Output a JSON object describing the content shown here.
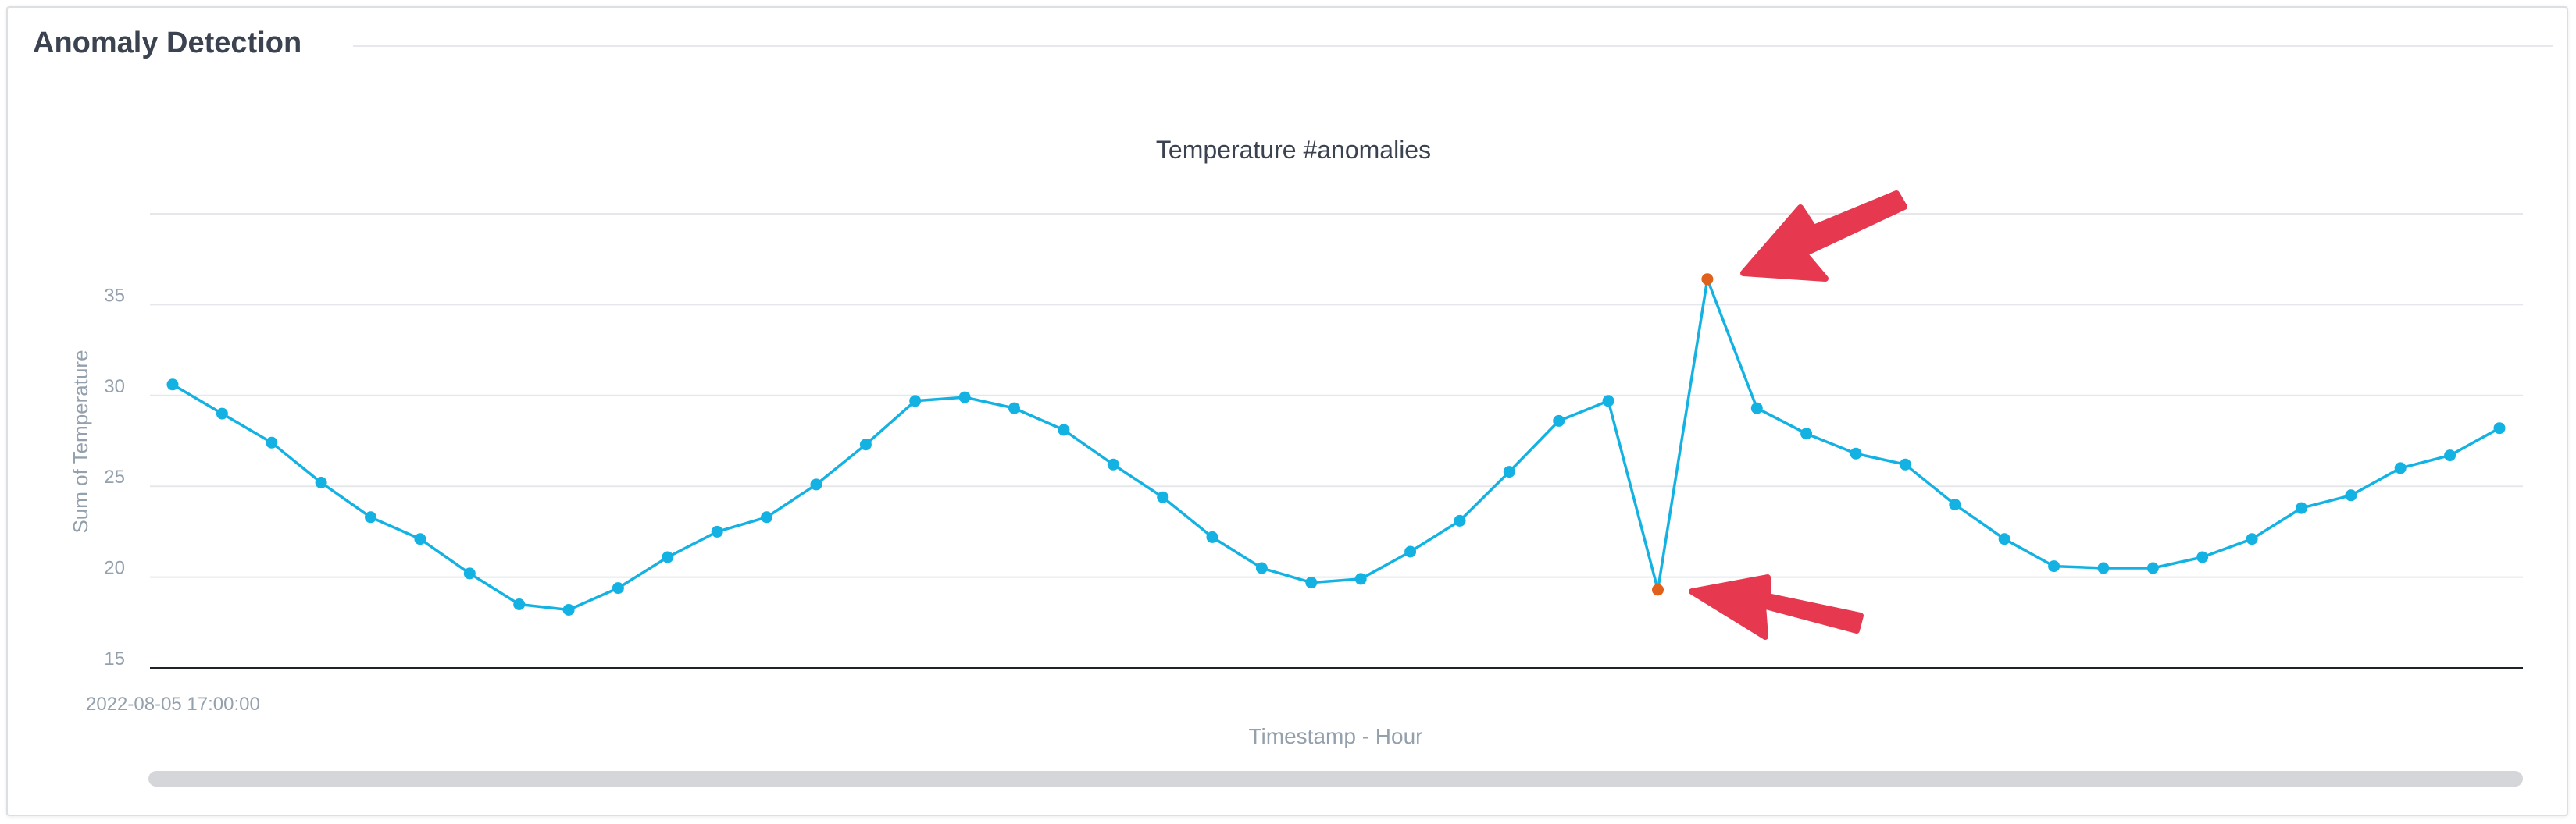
{
  "widget": {
    "title": "Anomaly Detection"
  },
  "colors": {
    "line": "#14b2e2",
    "anomaly": "#e0611b",
    "arrow": "#e6394f",
    "grid": "#e5e7ea",
    "axis": "#1f2328",
    "label": "#94a1ad",
    "title": "#3b4350"
  },
  "chart_data": {
    "type": "line",
    "title": "Temperature #anomalies",
    "xlabel": "Timestamp - Hour",
    "ylabel": "Sum of Temperature",
    "x_first_label": "2022-08-05 17:00:00",
    "ylim": [
      15,
      40
    ],
    "yticks": [
      15,
      20,
      25,
      30,
      35
    ],
    "grid": true,
    "legend": "none",
    "series": [
      {
        "values": [
          30.6,
          29.0,
          27.4,
          25.2,
          23.3,
          22.1,
          20.2,
          18.5,
          18.2,
          19.4,
          21.1,
          22.5,
          23.3,
          25.1,
          27.3,
          29.7,
          29.9,
          29.3,
          28.1,
          26.2,
          24.4,
          22.2,
          20.5,
          19.7,
          19.9,
          21.4,
          23.1,
          25.8,
          28.6,
          29.7,
          19.3,
          36.4,
          29.3,
          27.9,
          26.8,
          26.2,
          24.0,
          22.1,
          20.6,
          20.5,
          20.5,
          21.1,
          22.1,
          23.8,
          24.5,
          26.0,
          26.7,
          28.2
        ]
      }
    ],
    "anomaly_indices": [
      30,
      31
    ]
  }
}
